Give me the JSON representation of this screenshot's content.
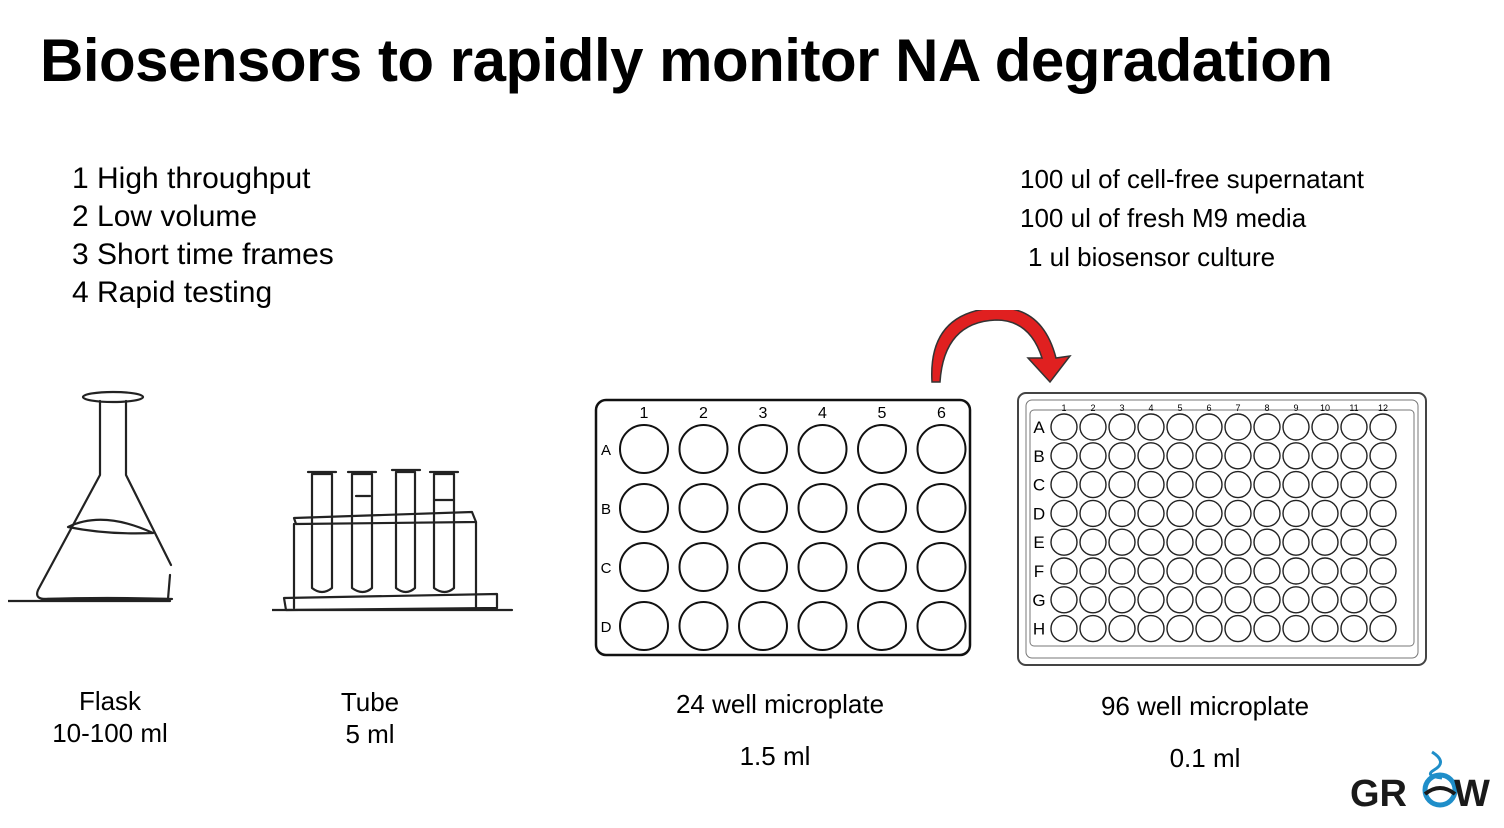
{
  "title": "Biosensors to rapidly monitor NA degradation",
  "advantages": [
    "1 High throughput",
    "2 Low volume",
    "3 Short time frames",
    "4 Rapid testing"
  ],
  "recipe": [
    "100 ul of cell-free supernatant",
    "100 ul of fresh M9 media",
    "1 ul biosensor culture"
  ],
  "vessels": [
    {
      "name": "Flask",
      "volume": "10-100 ml"
    },
    {
      "name": "Tube",
      "volume": "5 ml"
    },
    {
      "name": "24 well microplate",
      "volume": "1.5 ml"
    },
    {
      "name": "96 well microplate",
      "volume": "0.1 ml"
    }
  ],
  "plate24": {
    "columns": [
      "1",
      "2",
      "3",
      "4",
      "5",
      "6"
    ],
    "rows": [
      "A",
      "B",
      "C",
      "D"
    ]
  },
  "plate96": {
    "columns": [
      "1",
      "2",
      "3",
      "4",
      "5",
      "6",
      "7",
      "8",
      "9",
      "10",
      "11",
      "12"
    ],
    "rows": [
      "A",
      "B",
      "C",
      "D",
      "E",
      "F",
      "G",
      "H"
    ]
  },
  "logo": {
    "text_left": "GR",
    "text_right": "W",
    "color": "#1a1a1a",
    "accent": "#1f8ec9"
  },
  "arrow_color": "#e02020"
}
